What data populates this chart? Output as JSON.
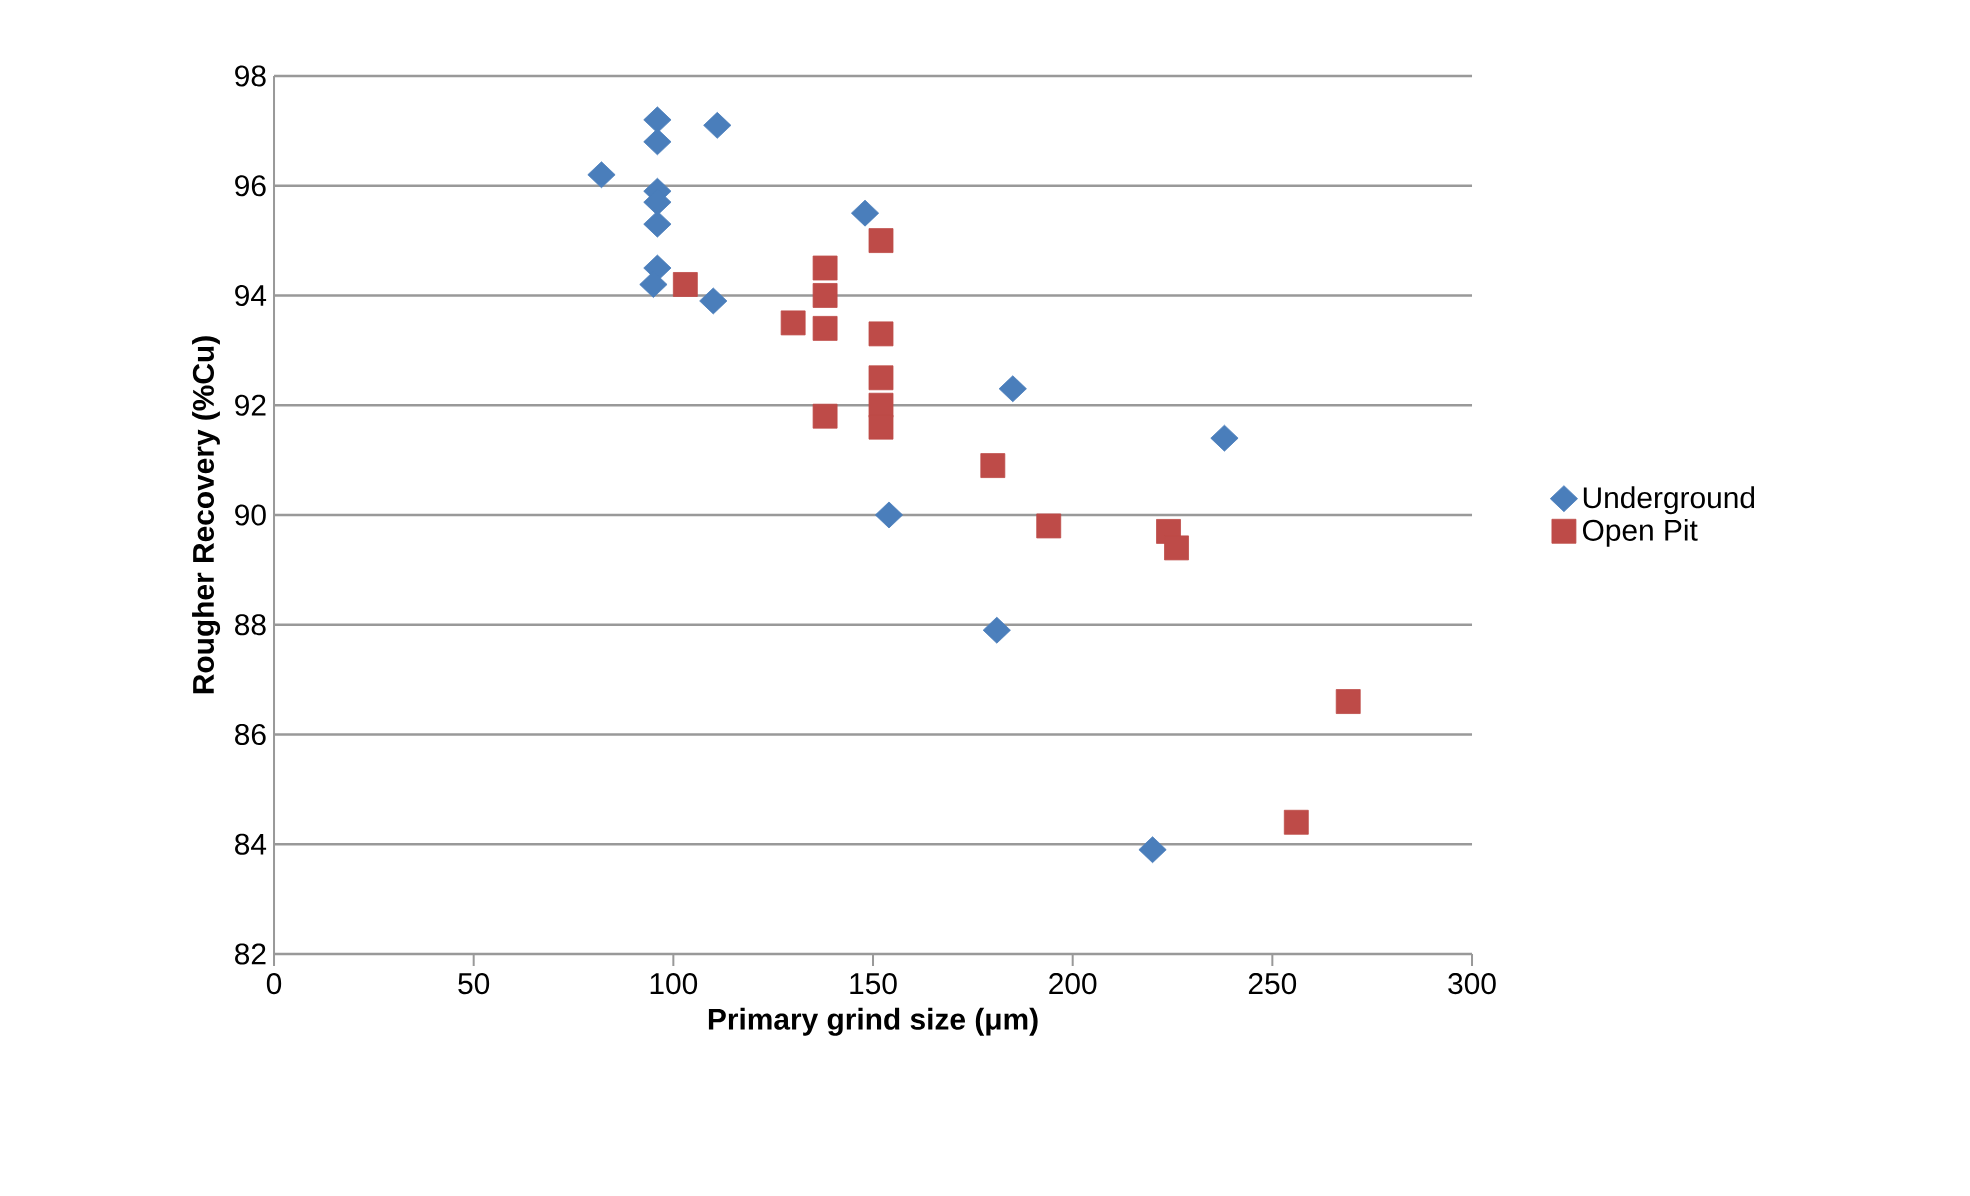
{
  "chart_data": {
    "type": "scatter",
    "xlabel": "Primary grind size (μm)",
    "ylabel": "Rougher Recovery (%Cu)",
    "xlim": [
      0,
      300
    ],
    "xticks": [
      0,
      50,
      100,
      150,
      200,
      250,
      300
    ],
    "ylim": [
      82,
      98
    ],
    "yticks": [
      82,
      84,
      86,
      88,
      90,
      92,
      94,
      96,
      98
    ],
    "grid": "y",
    "legend": "right",
    "series": [
      {
        "name": "Underground",
        "color": "#4a7ebb",
        "marker": "diamond",
        "x": [
          82,
          96,
          96,
          111,
          96,
          96,
          96,
          96,
          95,
          110,
          148,
          185,
          238,
          154,
          181,
          220
        ],
        "values": [
          96.2,
          97.2,
          96.8,
          97.1,
          95.9,
          95.7,
          95.3,
          94.5,
          94.2,
          93.9,
          95.5,
          92.3,
          91.4,
          90.0,
          87.9,
          83.9
        ]
      },
      {
        "name": "Open Pit",
        "color": "#be4b48",
        "marker": "square",
        "x": [
          103,
          130,
          138,
          138,
          138,
          138,
          152,
          152,
          152,
          152,
          152,
          180,
          194,
          224,
          226,
          269,
          256
        ],
        "values": [
          94.2,
          93.5,
          94.5,
          94.0,
          93.4,
          91.8,
          95.0,
          93.3,
          92.5,
          92.0,
          91.6,
          90.9,
          89.8,
          89.7,
          89.4,
          86.6,
          84.4
        ]
      }
    ]
  }
}
